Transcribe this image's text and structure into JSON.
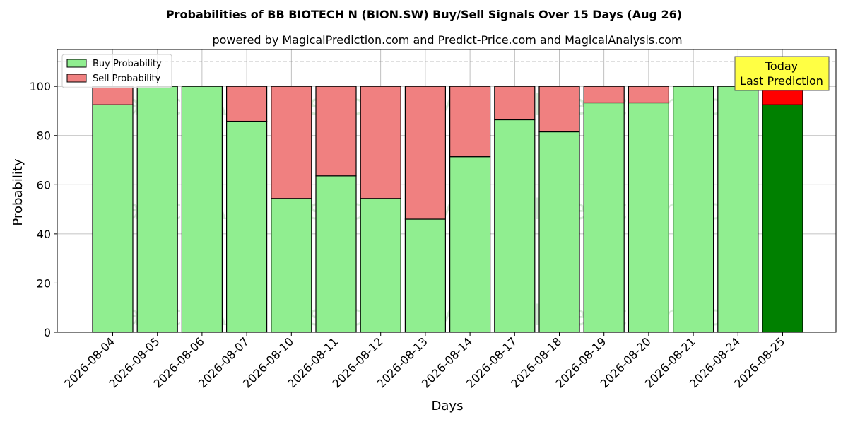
{
  "chart_data": {
    "type": "bar",
    "stacked": true,
    "title": "Probabilities of BB BIOTECH N (BION.SW) Buy/Sell Signals Over 15 Days (Aug 26)",
    "subtitle": "powered by MagicalPrediction.com and Predict-Price.com and MagicalAnalysis.com",
    "xlabel": "Days",
    "ylabel": "Probability",
    "ylim": [
      0,
      115
    ],
    "yticks": [
      0,
      20,
      40,
      60,
      80,
      100
    ],
    "reference_line": 110,
    "grid": true,
    "legend_position": "top-left",
    "categories": [
      "2026-08-04",
      "2026-08-05",
      "2026-08-06",
      "2026-08-07",
      "2026-08-10",
      "2026-08-11",
      "2026-08-12",
      "2026-08-13",
      "2026-08-14",
      "2026-08-17",
      "2026-08-18",
      "2026-08-19",
      "2026-08-20",
      "2026-08-21",
      "2026-08-24",
      "2026-08-25"
    ],
    "series": [
      {
        "name": "Buy Probability",
        "color": "#90ee90",
        "highlight_color": "#008000",
        "values": [
          92.5,
          100,
          100,
          85.8,
          54.4,
          63.6,
          54.4,
          46.0,
          71.4,
          86.4,
          81.5,
          93.3,
          93.3,
          100,
          100,
          92.5
        ]
      },
      {
        "name": "Sell Probability",
        "color": "#f08080",
        "highlight_color": "#ff0000",
        "values": [
          7.5,
          0,
          0,
          14.2,
          45.6,
          36.4,
          45.6,
          54.0,
          28.6,
          13.6,
          18.5,
          6.7,
          6.7,
          0,
          0,
          7.5
        ]
      }
    ],
    "highlight_index": 15,
    "annotation": {
      "line1": "Today",
      "line2": "Last Prediction",
      "background": "#ffff44"
    },
    "watermarks": [
      "MagicalAnalysis.com",
      "MagicalPrediction.com"
    ]
  }
}
